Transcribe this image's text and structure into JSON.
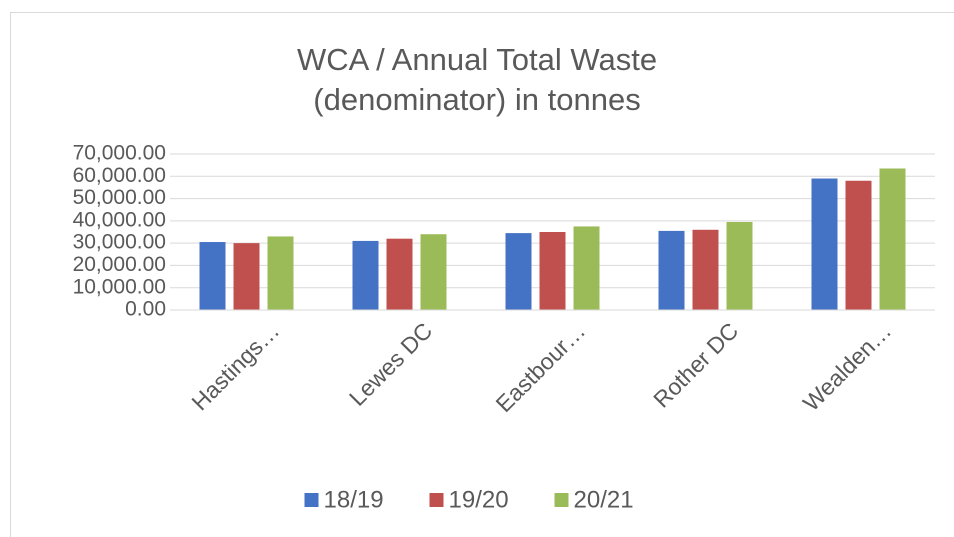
{
  "chart_data": {
    "type": "bar",
    "title": "WCA / Annual Total Waste (denominator) in tonnes",
    "categories": [
      "Hastings…",
      "Lewes DC",
      "Eastbour…",
      "Rother DC",
      "Wealden…"
    ],
    "series": [
      {
        "name": "18/19",
        "color": "#4472c4",
        "values": [
          30500,
          31000,
          34500,
          35500,
          59000
        ]
      },
      {
        "name": "19/20",
        "color": "#c0504d",
        "values": [
          30000,
          32000,
          35000,
          36000,
          58000
        ]
      },
      {
        "name": "20/21",
        "color": "#9bbb59",
        "values": [
          33000,
          34000,
          37500,
          39500,
          63500
        ]
      }
    ],
    "ylim": [
      0,
      70000
    ],
    "yticks": [
      {
        "value": 0,
        "label": "0.00"
      },
      {
        "value": 10000,
        "label": "10,000.00"
      },
      {
        "value": 20000,
        "label": "20,000.00"
      },
      {
        "value": 30000,
        "label": "30,000.00"
      },
      {
        "value": 40000,
        "label": "40,000.00"
      },
      {
        "value": 50000,
        "label": "50,000.00"
      },
      {
        "value": 60000,
        "label": "60,000.00"
      },
      {
        "value": 70000,
        "label": "70,000.00"
      }
    ],
    "grid": true,
    "legend": "bottom"
  }
}
